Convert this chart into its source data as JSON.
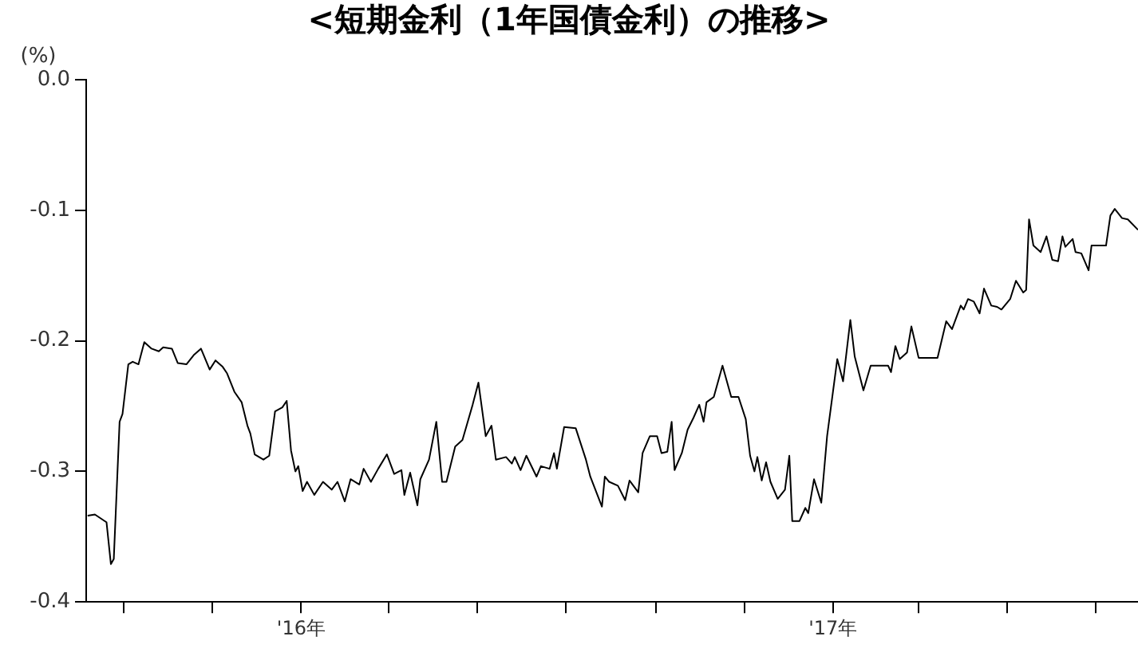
{
  "chart_data": {
    "type": "line",
    "title": "<短期金利（1年国債金利）の推移>",
    "ylabel": "(%)",
    "xlim": [
      "2015-08-06",
      "2017-07-30"
    ],
    "xticks": [
      {
        "value": "2015-09-01",
        "label": null
      },
      {
        "value": "2015-11-01",
        "label": null
      },
      {
        "value": "2016-01-01",
        "label": "'16年"
      },
      {
        "value": "2016-03-01",
        "label": null
      },
      {
        "value": "2016-05-01",
        "label": null
      },
      {
        "value": "2016-07-01",
        "label": null
      },
      {
        "value": "2016-09-01",
        "label": null
      },
      {
        "value": "2016-11-01",
        "label": null
      },
      {
        "value": "2017-01-01",
        "label": "'17年"
      },
      {
        "value": "2017-03-01",
        "label": null
      },
      {
        "value": "2017-05-01",
        "label": null
      },
      {
        "value": "2017-07-01",
        "label": null
      }
    ],
    "ylim": [
      -0.4,
      0
    ],
    "yticks": [
      {
        "value": 0,
        "label": "0.0"
      },
      -0.1,
      -0.2,
      -0.3,
      -0.4
    ],
    "marker": "none",
    "line_style": "solid",
    "legend": false,
    "x": [
      "2015-08-07",
      "2015-08-12",
      "2015-08-20",
      "2015-08-23",
      "2015-08-25",
      "2015-08-29",
      "2015-08-31",
      "2015-09-04",
      "2015-09-07",
      "2015-09-11",
      "2015-09-15",
      "2015-09-20",
      "2015-09-25",
      "2015-09-28",
      "2015-10-04",
      "2015-10-08",
      "2015-10-14",
      "2015-10-19",
      "2015-10-24",
      "2015-10-30",
      "2015-11-03",
      "2015-11-08",
      "2015-11-11",
      "2015-11-16",
      "2015-11-21",
      "2015-11-25",
      "2015-11-27",
      "2015-11-30",
      "2015-12-06",
      "2015-12-10",
      "2015-12-14",
      "2015-12-19",
      "2015-12-22",
      "2015-12-25",
      "2015-12-28",
      "2015-12-30",
      "2016-01-02",
      "2016-01-05",
      "2016-01-10",
      "2016-01-16",
      "2016-01-22",
      "2016-01-26",
      "2016-01-31",
      "2016-02-04",
      "2016-02-10",
      "2016-02-13",
      "2016-02-18",
      "2016-02-23",
      "2016-02-29",
      "2016-03-05",
      "2016-03-10",
      "2016-03-12",
      "2016-03-16",
      "2016-03-21",
      "2016-03-23",
      "2016-03-29",
      "2016-04-03",
      "2016-04-07",
      "2016-04-10",
      "2016-04-16",
      "2016-04-21",
      "2016-04-28",
      "2016-05-02",
      "2016-05-07",
      "2016-05-11",
      "2016-05-14",
      "2016-05-21",
      "2016-05-25",
      "2016-05-27",
      "2016-05-31",
      "2016-06-04",
      "2016-06-11",
      "2016-06-14",
      "2016-06-20",
      "2016-06-23",
      "2016-06-25",
      "2016-06-30",
      "2016-07-08",
      "2016-07-15",
      "2016-07-18",
      "2016-07-26",
      "2016-07-28",
      "2016-07-31",
      "2016-08-06",
      "2016-08-11",
      "2016-08-14",
      "2016-08-20",
      "2016-08-23",
      "2016-08-28",
      "2016-09-02",
      "2016-09-05",
      "2016-09-09",
      "2016-09-12",
      "2016-09-14",
      "2016-09-19",
      "2016-09-23",
      "2016-09-27",
      "2016-10-01",
      "2016-10-04",
      "2016-10-06",
      "2016-10-11",
      "2016-10-17",
      "2016-10-23",
      "2016-10-28",
      "2016-11-02",
      "2016-11-05",
      "2016-11-08",
      "2016-11-10",
      "2016-11-13",
      "2016-11-16",
      "2016-11-19",
      "2016-11-24",
      "2016-11-29",
      "2016-12-02",
      "2016-12-04",
      "2016-12-09",
      "2016-12-13",
      "2016-12-15",
      "2016-12-19",
      "2016-12-24",
      "2016-12-28",
      "2017-01-04",
      "2017-01-08",
      "2017-01-13",
      "2017-01-16",
      "2017-01-22",
      "2017-01-27",
      "2017-02-03",
      "2017-02-08",
      "2017-02-10",
      "2017-02-13",
      "2017-02-16",
      "2017-02-21",
      "2017-02-24",
      "2017-03-01",
      "2017-03-14",
      "2017-03-20",
      "2017-03-24",
      "2017-03-30",
      "2017-04-01",
      "2017-04-04",
      "2017-04-08",
      "2017-04-12",
      "2017-04-15",
      "2017-04-20",
      "2017-04-24",
      "2017-04-27",
      "2017-05-03",
      "2017-05-07",
      "2017-05-12",
      "2017-05-14",
      "2017-05-16",
      "2017-05-19",
      "2017-05-24",
      "2017-05-28",
      "2017-06-01",
      "2017-06-05",
      "2017-06-08",
      "2017-06-10",
      "2017-06-15",
      "2017-06-17",
      "2017-06-21",
      "2017-06-26",
      "2017-06-28",
      "2017-07-08",
      "2017-07-11",
      "2017-07-14",
      "2017-07-19",
      "2017-07-23",
      "2017-07-30"
    ],
    "series": [
      {
        "color": "#000000",
        "values": [
          -0.334,
          -0.333,
          -0.339,
          -0.371,
          -0.367,
          -0.262,
          -0.256,
          -0.218,
          -0.216,
          -0.218,
          -0.201,
          -0.206,
          -0.208,
          -0.205,
          -0.206,
          -0.217,
          -0.218,
          -0.211,
          -0.206,
          -0.222,
          -0.215,
          -0.22,
          -0.225,
          -0.239,
          -0.247,
          -0.265,
          -0.271,
          -0.287,
          -0.291,
          -0.288,
          -0.254,
          -0.251,
          -0.246,
          -0.284,
          -0.3,
          -0.296,
          -0.315,
          -0.308,
          -0.318,
          -0.308,
          -0.314,
          -0.308,
          -0.323,
          -0.306,
          -0.31,
          -0.298,
          -0.308,
          -0.298,
          -0.287,
          -0.302,
          -0.299,
          -0.318,
          -0.301,
          -0.326,
          -0.306,
          -0.291,
          -0.262,
          -0.308,
          -0.308,
          -0.281,
          -0.276,
          -0.249,
          -0.232,
          -0.273,
          -0.265,
          -0.291,
          -0.289,
          -0.294,
          -0.289,
          -0.299,
          -0.288,
          -0.304,
          -0.296,
          -0.298,
          -0.286,
          -0.298,
          -0.266,
          -0.267,
          -0.291,
          -0.304,
          -0.327,
          -0.304,
          -0.308,
          -0.311,
          -0.322,
          -0.307,
          -0.316,
          -0.286,
          -0.273,
          -0.273,
          -0.286,
          -0.285,
          -0.262,
          -0.299,
          -0.286,
          -0.268,
          -0.259,
          -0.249,
          -0.262,
          -0.247,
          -0.243,
          -0.219,
          -0.243,
          -0.243,
          -0.26,
          -0.288,
          -0.3,
          -0.289,
          -0.307,
          -0.293,
          -0.308,
          -0.321,
          -0.314,
          -0.288,
          -0.338,
          -0.338,
          -0.328,
          -0.332,
          -0.306,
          -0.324,
          -0.273,
          -0.214,
          -0.231,
          -0.184,
          -0.212,
          -0.238,
          -0.219,
          -0.219,
          -0.219,
          -0.224,
          -0.204,
          -0.214,
          -0.209,
          -0.189,
          -0.213,
          -0.213,
          -0.185,
          -0.191,
          -0.173,
          -0.176,
          -0.168,
          -0.17,
          -0.179,
          -0.16,
          -0.173,
          -0.174,
          -0.176,
          -0.168,
          -0.154,
          -0.163,
          -0.161,
          -0.107,
          -0.127,
          -0.132,
          -0.12,
          -0.138,
          -0.139,
          -0.12,
          -0.128,
          -0.122,
          -0.132,
          -0.133,
          -0.146,
          -0.127,
          -0.127,
          -0.104,
          -0.099,
          -0.106,
          -0.107,
          -0.115
        ]
      }
    ]
  }
}
